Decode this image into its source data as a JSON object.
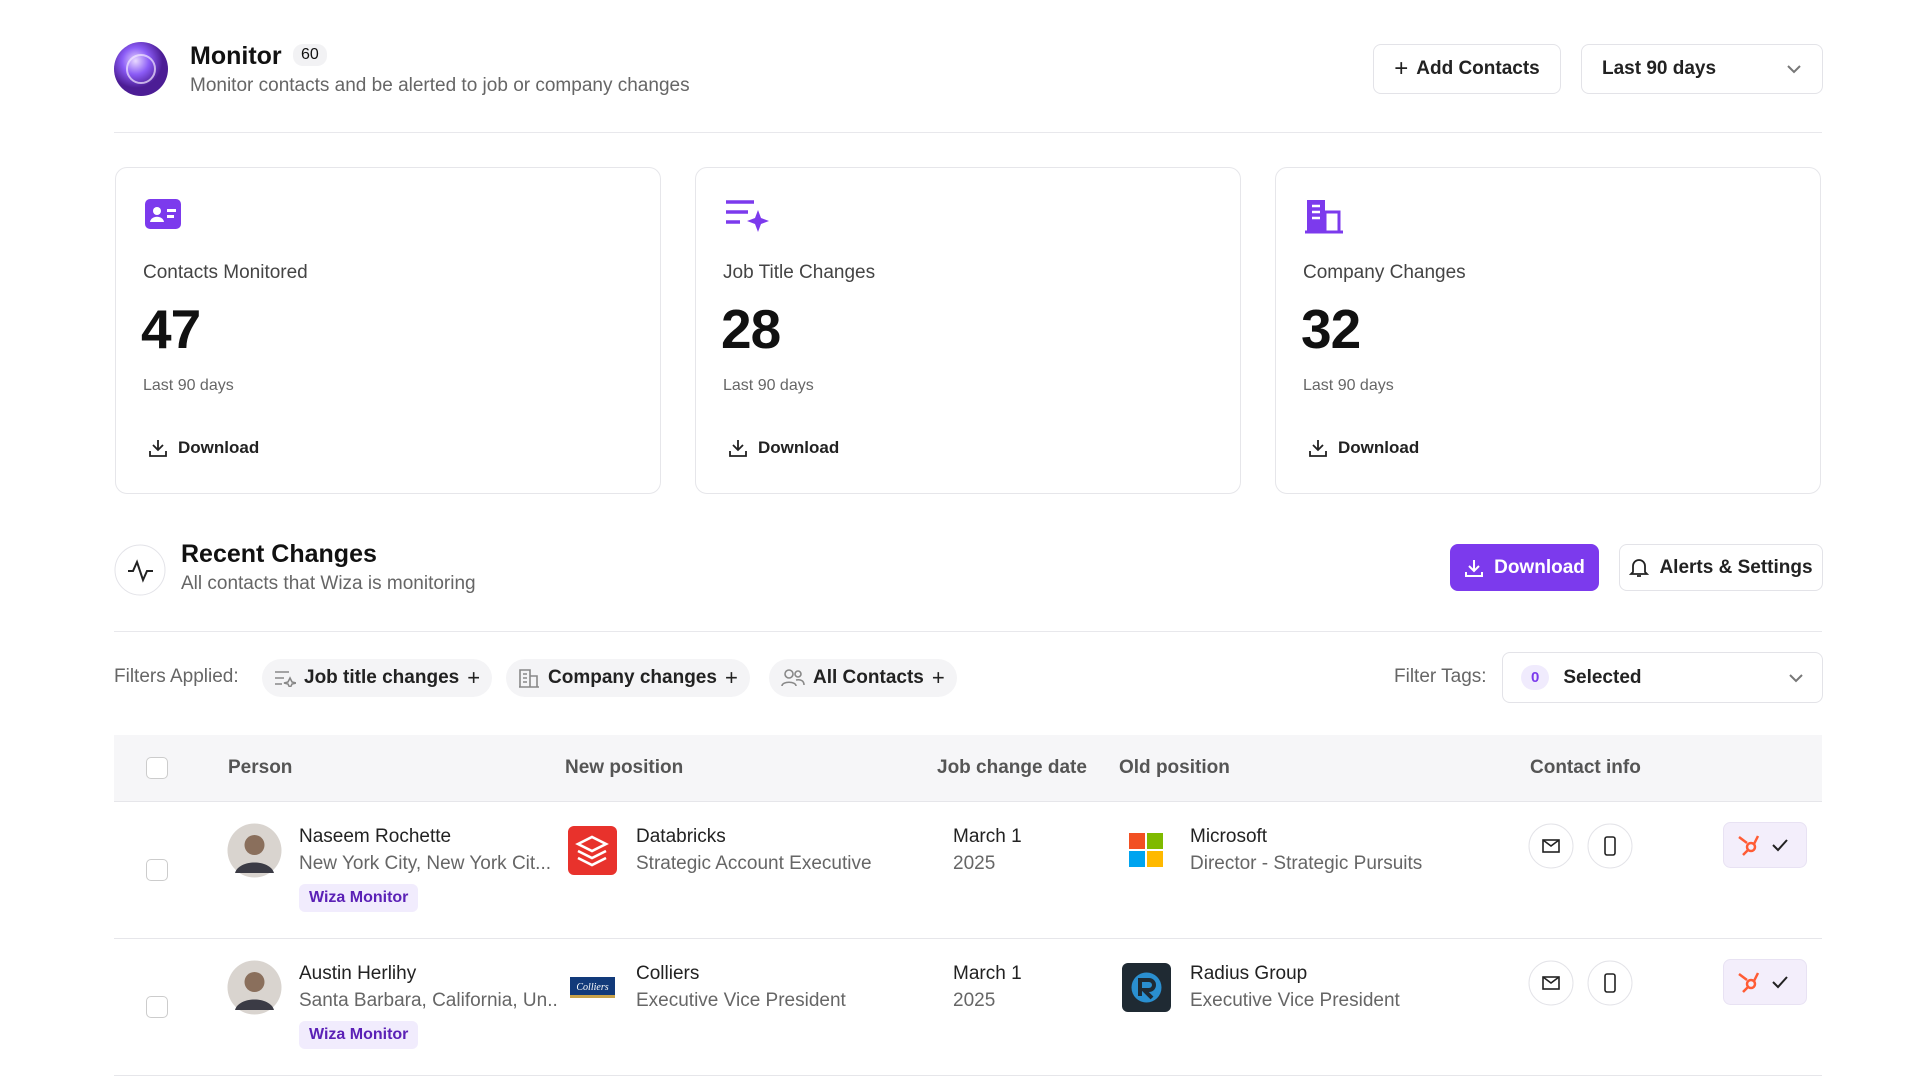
{
  "header": {
    "title": "Monitor",
    "count": 60,
    "subtitle": "Monitor contacts and be alerted to job or company changes",
    "add_button": "Add Contacts",
    "date_range": "Last 90 days"
  },
  "cards": [
    {
      "label": "Contacts Monitored",
      "value": 47,
      "period": "Last 90 days",
      "action": "Download"
    },
    {
      "label": "Job Title Changes",
      "value": 28,
      "period": "Last 90 days",
      "action": "Download"
    },
    {
      "label": "Company Changes",
      "value": 32,
      "period": "Last 90 days",
      "action": "Download"
    }
  ],
  "recent": {
    "title": "Recent Changes",
    "subtitle": "All contacts that Wiza is monitoring",
    "download": "Download",
    "settings": "Alerts & Settings"
  },
  "filters": {
    "label": "Filters Applied:",
    "chips": [
      "Job title changes",
      "Company changes",
      "All Contacts"
    ],
    "tags_label": "Filter Tags:",
    "tags_count": 0,
    "tags_value": "Selected"
  },
  "table": {
    "columns": [
      "Person",
      "New position",
      "Job change date",
      "Old position",
      "Contact info"
    ],
    "rows": [
      {
        "name": "Naseem Rochette",
        "location": "New York City, New York Cit...",
        "tag": "Wiza Monitor",
        "new_company": "Databricks",
        "new_title": "Strategic Account Executive",
        "date": "March 1",
        "year": "2025",
        "old_company": "Microsoft",
        "old_title": "Director - Strategic Pursuits"
      },
      {
        "name": "Austin Herlihy",
        "location": "Santa Barbara, California, Un..",
        "tag": "Wiza Monitor",
        "new_company": "Colliers",
        "new_title": "Executive Vice President",
        "date": "March 1",
        "year": "2025",
        "old_company": "Radius Group",
        "old_title": "Executive Vice President"
      }
    ]
  }
}
